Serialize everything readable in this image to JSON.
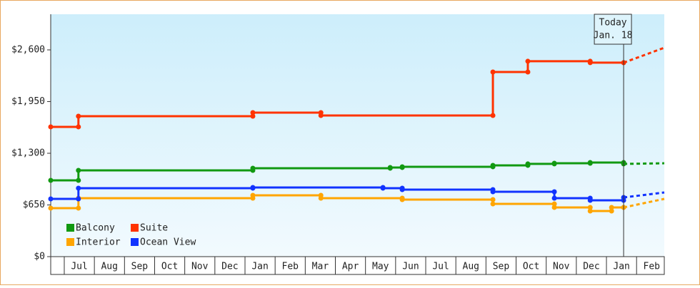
{
  "chart_data": {
    "type": "step-line",
    "xlim": [
      0.55,
      20.92
    ],
    "ylim": [
      0,
      3048
    ],
    "yticks": [
      {
        "value": 0,
        "label": "$0"
      },
      {
        "value": 650,
        "label": "$650"
      },
      {
        "value": 1300,
        "label": "$1,300"
      },
      {
        "value": 1950,
        "label": "$1,950"
      },
      {
        "value": 2600,
        "label": "$2,600"
      }
    ],
    "xticks": [
      {
        "value": 1.5,
        "label": "Jul"
      },
      {
        "value": 2.5,
        "label": "Aug"
      },
      {
        "value": 3.5,
        "label": "Sep"
      },
      {
        "value": 4.5,
        "label": "Oct"
      },
      {
        "value": 5.5,
        "label": "Nov"
      },
      {
        "value": 6.5,
        "label": "Dec"
      },
      {
        "value": 7.5,
        "label": "Jan"
      },
      {
        "value": 8.5,
        "label": "Feb"
      },
      {
        "value": 9.5,
        "label": "Mar"
      },
      {
        "value": 10.5,
        "label": "Apr"
      },
      {
        "value": 11.5,
        "label": "May"
      },
      {
        "value": 12.5,
        "label": "Jun"
      },
      {
        "value": 13.5,
        "label": "Jul"
      },
      {
        "value": 14.5,
        "label": "Aug"
      },
      {
        "value": 15.5,
        "label": "Sep"
      },
      {
        "value": 16.5,
        "label": "Oct"
      },
      {
        "value": 17.5,
        "label": "Nov"
      },
      {
        "value": 18.5,
        "label": "Dec"
      },
      {
        "value": 19.5,
        "label": "Jan"
      },
      {
        "value": 20.5,
        "label": "Feb"
      }
    ],
    "today": {
      "x": 19.57,
      "label": "Today",
      "date": "Jan. 18"
    },
    "series": [
      {
        "name": "Balcony",
        "color": "#119911",
        "x": [
          0.55,
          1.47,
          7.26,
          11.82,
          12.22,
          15.23,
          16.39,
          17.27,
          18.46,
          19.57
        ],
        "values": [
          959,
          1085,
          1112,
          1121,
          1130,
          1148,
          1166,
          1174,
          1183,
          1166
        ],
        "forecast": 1174
      },
      {
        "name": "Suite",
        "color": "#ff3300",
        "x": [
          0.55,
          1.47,
          7.26,
          9.52,
          15.23,
          16.39,
          18.46,
          19.57
        ],
        "values": [
          1632,
          1766,
          1811,
          1775,
          2322,
          2457,
          2439,
          2439
        ],
        "forecast": 2627
      },
      {
        "name": "Interior",
        "color": "#ffa500",
        "x": [
          0.55,
          1.47,
          7.26,
          9.52,
          12.22,
          15.23,
          17.27,
          18.46,
          19.17,
          19.57
        ],
        "values": [
          610,
          735,
          771,
          735,
          717,
          663,
          619,
          574,
          619,
          619
        ],
        "forecast": 726
      },
      {
        "name": "Ocean View",
        "color": "#1133ff",
        "x": [
          0.55,
          1.47,
          7.26,
          11.58,
          12.22,
          15.23,
          17.27,
          18.46,
          19.57
        ],
        "values": [
          726,
          861,
          870,
          861,
          843,
          816,
          735,
          708,
          744
        ],
        "forecast": 807
      }
    ]
  }
}
